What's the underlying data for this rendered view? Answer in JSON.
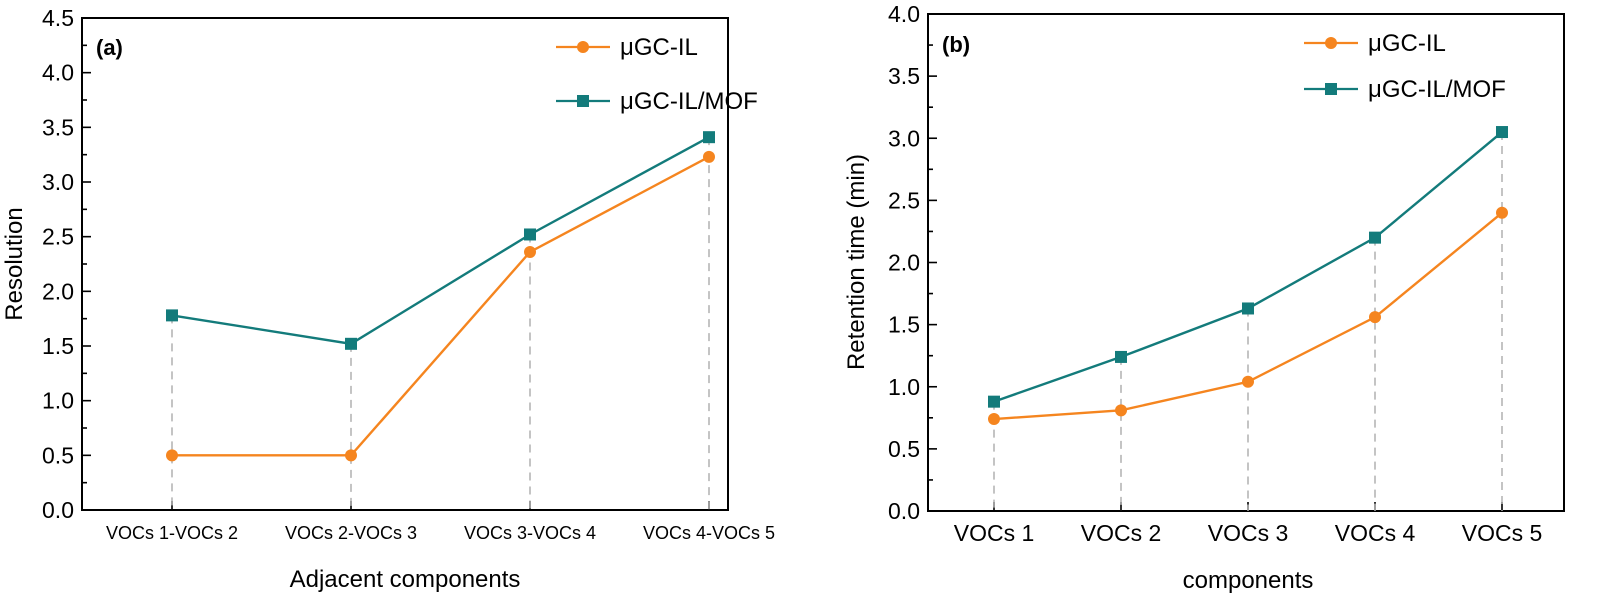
{
  "colors": {
    "il": "#F5851F",
    "mof": "#137B7B"
  },
  "chart_data": [
    {
      "type": "line",
      "panel_label": "(a)",
      "xlabel": "Adjacent components",
      "ylabel": "Resolution",
      "categories": [
        "VOCs 1-VOCs 2",
        "VOCs 2-VOCs 3",
        "VOCs 3-VOCs 4",
        "VOCs 4-VOCs 5"
      ],
      "ylim": [
        0,
        4.5
      ],
      "yticks": [
        "0.0",
        "0.5",
        "1.0",
        "1.5",
        "2.0",
        "2.5",
        "3.0",
        "3.5",
        "4.0",
        "4.5"
      ],
      "legend_position": "top-right",
      "series": [
        {
          "name": "μGC-IL",
          "marker": "circle",
          "values": [
            0.5,
            0.5,
            2.36,
            3.23
          ]
        },
        {
          "name": "μGC-IL/MOF",
          "marker": "square",
          "values": [
            1.78,
            1.52,
            2.52,
            3.41
          ]
        }
      ]
    },
    {
      "type": "line",
      "panel_label": "(b)",
      "xlabel": "components",
      "ylabel": "Retention time (min)",
      "categories": [
        "VOCs 1",
        "VOCs 2",
        "VOCs 3",
        "VOCs 4",
        "VOCs 5"
      ],
      "ylim": [
        0,
        4.0
      ],
      "yticks": [
        "0.0",
        "0.5",
        "1.0",
        "1.5",
        "2.0",
        "2.5",
        "3.0",
        "3.5",
        "4.0"
      ],
      "legend_position": "top-right",
      "series": [
        {
          "name": "μGC-IL",
          "marker": "circle",
          "values": [
            0.74,
            0.81,
            1.04,
            1.56,
            2.4
          ]
        },
        {
          "name": "μGC-IL/MOF",
          "marker": "square",
          "values": [
            0.88,
            1.24,
            1.63,
            2.2,
            3.05
          ]
        }
      ]
    }
  ]
}
